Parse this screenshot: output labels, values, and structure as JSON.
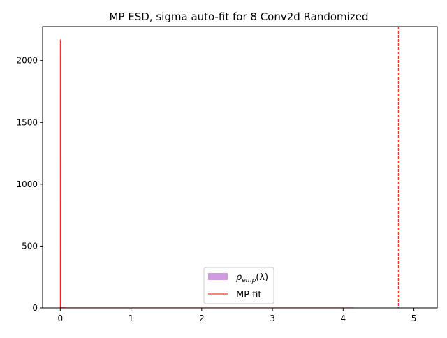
{
  "chart_data": {
    "type": "bar",
    "title": "MP ESD, sigma auto-fit for 8 Conv2d Randomized",
    "xlabel": "",
    "ylabel": "",
    "xlim": [
      -0.25,
      5.33
    ],
    "ylim": [
      0,
      2275
    ],
    "xticks": [
      0,
      1,
      2,
      3,
      4,
      5
    ],
    "yticks": [
      0,
      500,
      1000,
      1500,
      2000
    ],
    "grid": false,
    "legend_position": "lower center",
    "series": [
      {
        "name": "ρemp(λ)",
        "type": "histogram",
        "color": "#d19cdf",
        "bins": [
          {
            "x0": 0.0,
            "x1": 0.5,
            "value": 2
          },
          {
            "x0": 0.5,
            "x1": 1.0,
            "value": 2
          },
          {
            "x0": 1.0,
            "x1": 1.5,
            "value": 2
          },
          {
            "x0": 1.5,
            "x1": 2.0,
            "value": 2
          },
          {
            "x0": 2.0,
            "x1": 2.5,
            "value": 2
          },
          {
            "x0": 2.5,
            "x1": 3.0,
            "value": 2
          },
          {
            "x0": 3.0,
            "x1": 3.5,
            "value": 2
          },
          {
            "x0": 3.5,
            "x1": 4.0,
            "value": 2
          },
          {
            "x0": 4.0,
            "x1": 4.15,
            "value": 2
          }
        ]
      },
      {
        "name": "MP fit",
        "type": "line",
        "color": "#ff0000",
        "x": [
          0.0,
          0.0,
          0.001,
          0.01,
          0.1,
          1.0,
          2.0,
          3.0,
          4.0,
          4.15
        ],
        "y": [
          0,
          2170,
          4,
          2,
          1,
          1,
          1,
          1,
          1,
          1
        ]
      }
    ],
    "vlines": [
      {
        "x": 4.78,
        "color": "#ff0000",
        "style": "dashed"
      }
    ]
  },
  "legend": {
    "emp_label": "ρ",
    "emp_sub": "emp",
    "emp_suffix": "(λ)",
    "fit_label": "MP fit"
  }
}
